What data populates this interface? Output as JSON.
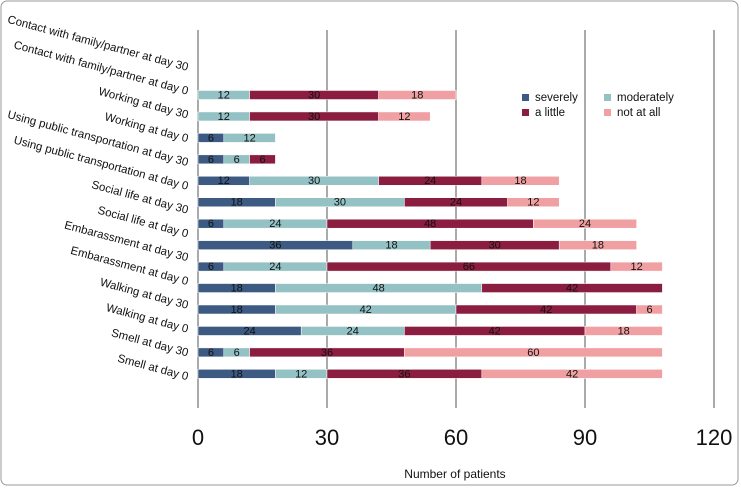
{
  "chart_data": {
    "type": "stacked_barh",
    "categories": [
      "Contact with family/partner at day 30",
      "Contact with family/partner at day 0",
      "Working at day 30",
      "Working at day 0",
      "Using public transportation at day 30",
      "Using public transportation at day 0",
      "Social life at day 30",
      "Social life at day 0",
      "Embarassment at day 30",
      "Embarassment at day 0",
      "Walking at day 30",
      "Walking at day 0",
      "Smell at day 30",
      "Smell at day 0"
    ],
    "series": [
      {
        "name": "severely",
        "color": "#3c5a82",
        "values": [
          0,
          0,
          6,
          6,
          12,
          18,
          6,
          36,
          6,
          18,
          18,
          24,
          6,
          18
        ]
      },
      {
        "name": "moderately",
        "color": "#93c1c4",
        "values": [
          12,
          12,
          12,
          6,
          30,
          30,
          24,
          18,
          24,
          48,
          42,
          24,
          6,
          12
        ]
      },
      {
        "name": "a little",
        "color": "#8b1e40",
        "values": [
          30,
          30,
          0,
          6,
          24,
          24,
          48,
          30,
          66,
          42,
          42,
          42,
          36,
          36
        ]
      },
      {
        "name": "not at all",
        "color": "#f0a0a2",
        "values": [
          18,
          12,
          0,
          0,
          18,
          12,
          24,
          18,
          12,
          0,
          6,
          18,
          60,
          42
        ]
      }
    ],
    "xlabel": "Number of patients",
    "xlim": [
      0,
      120
    ],
    "xticks": [
      0,
      30,
      60,
      90,
      120
    ],
    "grid": true
  }
}
